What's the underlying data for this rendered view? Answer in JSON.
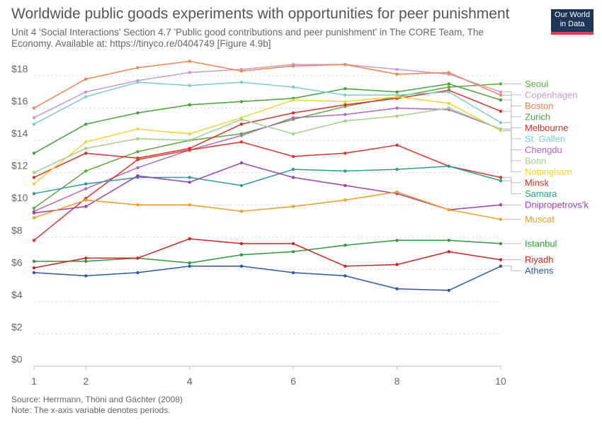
{
  "header": {
    "title": "Worldwide public goods experiments with opportunities for peer punishment",
    "subtitle": "Unit 4 'Social Interactions' Section 4.7 'Public good contributions and peer punishment' in The CORE Team, The Economy. Available at: https://tinyco.re/0404749 [Figure 4.9b]",
    "logo_line1": "Our World",
    "logo_line2": "in Data"
  },
  "footer": {
    "source": "Source: Herrmann, Thöni and Gächter (2008)",
    "note": "Note: The x-axis variable denotes periods."
  },
  "colors": {
    "logo_bg": "#1d3557",
    "logo_accent": "#e63946"
  },
  "chart_data": {
    "type": "line",
    "title": "Worldwide public goods experiments with opportunities for peer punishment",
    "x": [
      1,
      2,
      3,
      4,
      5,
      6,
      7,
      8,
      9,
      10
    ],
    "xticks": [
      1,
      2,
      4,
      6,
      8,
      10
    ],
    "xtick_labels": [
      "1",
      "2",
      "4",
      "6",
      "8",
      "10"
    ],
    "ylim": [
      0,
      18
    ],
    "yticks": [
      0,
      2,
      4,
      6,
      8,
      10,
      12,
      14,
      16,
      18
    ],
    "ytick_labels": [
      "$0",
      "$2",
      "$4",
      "$6",
      "$8",
      "$10",
      "$12",
      "$14",
      "$16",
      "$18"
    ],
    "grid": "horizontal",
    "legend": "right",
    "series": [
      {
        "name": "Seoul",
        "color": "#5aaa3c",
        "values": [
          9.8,
          12.1,
          13.3,
          14.0,
          14.4,
          15.3,
          16.1,
          16.7,
          17.3,
          17.5
        ]
      },
      {
        "name": "Copenhagen",
        "color": "#c99ad2",
        "values": [
          15.4,
          17.0,
          17.7,
          18.2,
          18.4,
          18.7,
          18.7,
          18.4,
          18.1,
          17.0
        ]
      },
      {
        "name": "Boston",
        "color": "#ef8450",
        "values": [
          16.0,
          17.8,
          18.5,
          18.9,
          18.3,
          18.6,
          18.7,
          18.1,
          18.2,
          16.8
        ]
      },
      {
        "name": "Zurich",
        "color": "#42a435",
        "values": [
          13.2,
          15.0,
          15.7,
          16.2,
          16.4,
          16.6,
          17.2,
          17.0,
          17.5,
          16.5
        ]
      },
      {
        "name": "Melbourne",
        "color": "#d73027",
        "values": [
          11.7,
          13.2,
          12.9,
          13.5,
          15.0,
          15.7,
          16.2,
          16.6,
          17.1,
          15.8
        ]
      },
      {
        "name": "St. Gallen",
        "color": "#7ccbcf",
        "values": [
          15.0,
          16.7,
          17.6,
          17.4,
          17.6,
          17.3,
          16.8,
          16.8,
          17.0,
          15.1
        ]
      },
      {
        "name": "Chengdu",
        "color": "#b267bd",
        "values": [
          9.6,
          11.0,
          12.3,
          13.4,
          14.3,
          15.4,
          15.6,
          16.0,
          15.9,
          14.7
        ]
      },
      {
        "name": "Nottingham",
        "color": "#f7d236",
        "values": [
          11.3,
          13.9,
          14.7,
          14.4,
          15.4,
          16.5,
          16.4,
          16.7,
          16.3,
          14.6
        ]
      },
      {
        "name": "Bonn",
        "color": "#9fd18b",
        "values": [
          12.0,
          13.5,
          14.1,
          14.0,
          15.3,
          14.4,
          15.2,
          15.5,
          16.0,
          14.7
        ]
      },
      {
        "name": "Minsk",
        "color": "#e0312a",
        "values": [
          7.8,
          10.4,
          12.8,
          13.4,
          13.9,
          13.0,
          13.2,
          13.7,
          12.4,
          11.7
        ]
      },
      {
        "name": "Samara",
        "color": "#2a9b96",
        "values": [
          10.7,
          11.3,
          11.7,
          11.7,
          11.2,
          12.2,
          12.1,
          12.2,
          12.4,
          11.5
        ]
      },
      {
        "name": "Dnipropetrovs'k",
        "color": "#9c3fae",
        "values": [
          9.5,
          9.9,
          11.8,
          11.4,
          12.6,
          11.7,
          11.2,
          10.7,
          9.7,
          10.0
        ]
      },
      {
        "name": "Muscat",
        "color": "#f59c25",
        "values": [
          9.2,
          10.3,
          10.0,
          10.0,
          9.6,
          9.9,
          10.3,
          10.8,
          9.7,
          9.1
        ]
      },
      {
        "name": "Istanbul",
        "color": "#2c9a3c",
        "values": [
          6.5,
          6.5,
          6.7,
          6.4,
          6.9,
          7.1,
          7.5,
          7.8,
          7.8,
          7.6
        ]
      },
      {
        "name": "Riyadh",
        "color": "#d0221d",
        "values": [
          6.1,
          6.7,
          6.7,
          7.9,
          7.6,
          7.6,
          6.2,
          6.3,
          7.1,
          6.6
        ]
      },
      {
        "name": "Athens",
        "color": "#2a58a8",
        "values": [
          5.8,
          5.6,
          5.8,
          6.2,
          6.2,
          5.8,
          5.6,
          4.8,
          4.7,
          6.2
        ]
      }
    ]
  }
}
